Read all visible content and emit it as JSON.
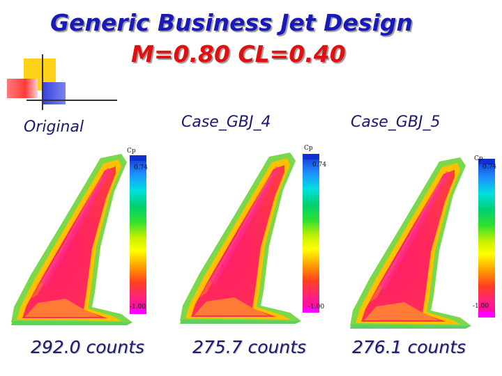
{
  "title": {
    "line1": "Generic Business Jet Design",
    "line2": "M=0.80  CL=0.40"
  },
  "colors": {
    "title": "#1a1ab8",
    "subtitle": "#e01010",
    "text": "#1a1a70",
    "deco_yellow": "#ffd21a",
    "deco_red": "#ff5a5a",
    "deco_blue": "#3a45d8"
  },
  "panels": [
    {
      "caption": "Original",
      "counts": "292.0 counts",
      "colorbar": {
        "label": "Cp",
        "max": "0.74",
        "min": "-1.00"
      }
    },
    {
      "caption": "Case_GBJ_4",
      "counts": "275.7 counts",
      "colorbar": {
        "label": "Cp",
        "max": "0.74",
        "min": "-1.00"
      }
    },
    {
      "caption": "Case_GBJ_5",
      "counts": "276.1 counts",
      "colorbar": {
        "label": "Cp",
        "max": "0.74",
        "min": "-1.00"
      }
    }
  ]
}
